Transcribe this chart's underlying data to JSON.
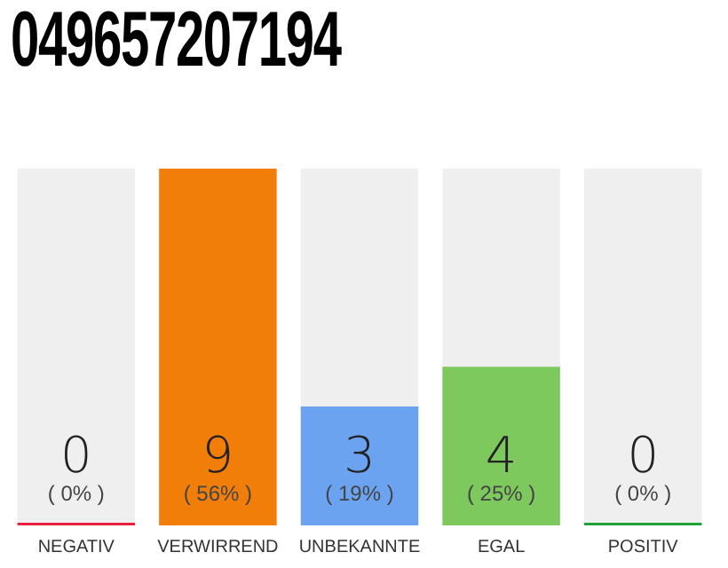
{
  "chart_data": {
    "type": "bar",
    "title": "049657207194",
    "categories": [
      "NEGATIV",
      "VERWIRREND",
      "UNBEKANNTE",
      "EGAL",
      "POSITIV"
    ],
    "values": [
      0,
      9,
      3,
      4,
      0
    ],
    "colors": [
      "#e8213f",
      "#f27e0a",
      "#6ba3f0",
      "#7dc95e",
      "#22a33a"
    ],
    "ylim": [
      0,
      9
    ],
    "tick_labels": "x",
    "grid": false,
    "legend": false,
    "data_labels": true,
    "annotations": [
      "( 0% )",
      "( 56% )",
      "( 19% )",
      "( 25% )",
      "( 0% )"
    ]
  }
}
